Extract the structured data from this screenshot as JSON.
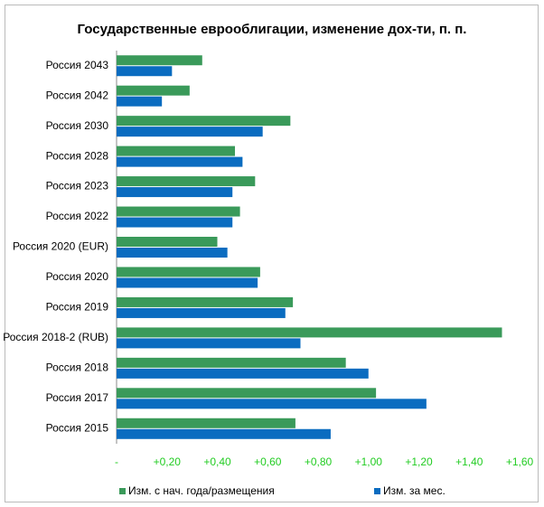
{
  "chart_data": {
    "type": "bar",
    "orientation": "horizontal",
    "title": "Государственные еврооблигации, изменение дох-ти, п. п.",
    "categories": [
      "Россия 2043",
      "Россия 2042",
      "Россия 2030",
      "Россия 2028",
      "Россия 2023",
      "Россия 2022",
      "Россия 2020 (EUR)",
      "Россия 2020",
      "Россия 2019",
      "Россия 2018-2 (RUB)",
      "Россия 2018",
      "Россия 2017",
      "Россия 2015"
    ],
    "series": [
      {
        "name": "Изм. с нач. года/размещения",
        "color": "#3a9a5a",
        "values": [
          0.34,
          0.29,
          0.69,
          0.47,
          0.55,
          0.49,
          0.4,
          0.57,
          0.7,
          1.53,
          0.91,
          1.03,
          0.71
        ]
      },
      {
        "name": "Изм. за мес.",
        "color": "#0a6cc0",
        "values": [
          0.22,
          0.18,
          0.58,
          0.5,
          0.46,
          0.46,
          0.44,
          0.56,
          0.67,
          0.73,
          1.0,
          1.23,
          0.85
        ]
      }
    ],
    "xlim": [
      0,
      1.6
    ],
    "xticks": [
      {
        "value": 0,
        "label": "-"
      },
      {
        "value": 0.2,
        "label": "+0,20"
      },
      {
        "value": 0.4,
        "label": "+0,40"
      },
      {
        "value": 0.6,
        "label": "+0,60"
      },
      {
        "value": 0.8,
        "label": "+0,80"
      },
      {
        "value": 1.0,
        "label": "+1,00"
      },
      {
        "value": 1.2,
        "label": "+1,20"
      },
      {
        "value": 1.4,
        "label": "+1,40"
      },
      {
        "value": 1.6,
        "label": "+1,60"
      }
    ],
    "grid": false
  }
}
